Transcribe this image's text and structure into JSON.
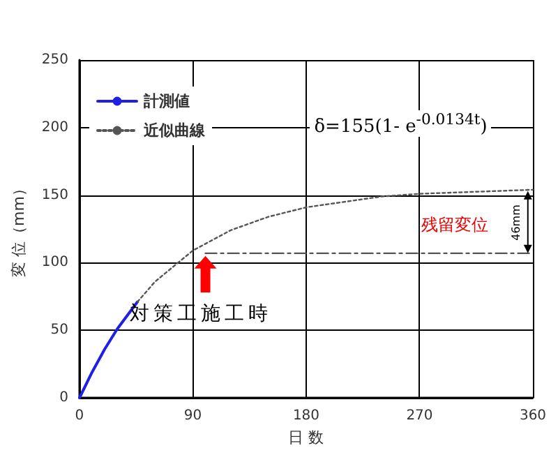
{
  "chart_data": {
    "type": "line",
    "xlabel": "日 数",
    "ylabel": "変 位（mm）",
    "xlim": [
      0,
      360
    ],
    "xticks": [
      0,
      90,
      180,
      270,
      360
    ],
    "ylim": [
      0,
      250
    ],
    "yticks": [
      0,
      50,
      100,
      150,
      200,
      250
    ],
    "grid": true,
    "legend": "top left",
    "marker": "none",
    "series": [
      {
        "name": "計測値",
        "color": "#1f1fe6",
        "line_style": "solid",
        "x": [
          0,
          10,
          20,
          30,
          46
        ],
        "values": [
          0,
          19,
          36,
          51,
          71
        ]
      },
      {
        "name": "近似曲線",
        "color": "#555555",
        "line_style": "dotted",
        "x": [
          46,
          60,
          90,
          120,
          150,
          180,
          240,
          270,
          300,
          360
        ],
        "values": [
          71,
          86,
          109,
          124,
          134,
          141,
          149,
          151,
          152,
          154
        ]
      },
      {
        "color": "#555555",
        "line_style": "dashed",
        "x": [
          100,
          358
        ],
        "values": [
          107,
          107
        ]
      }
    ],
    "annotations": [
      "δ=155(1- e$^{-0.0134t}$)",
      "対策工施工時",
      "残留変位",
      "46mm"
    ]
  }
}
